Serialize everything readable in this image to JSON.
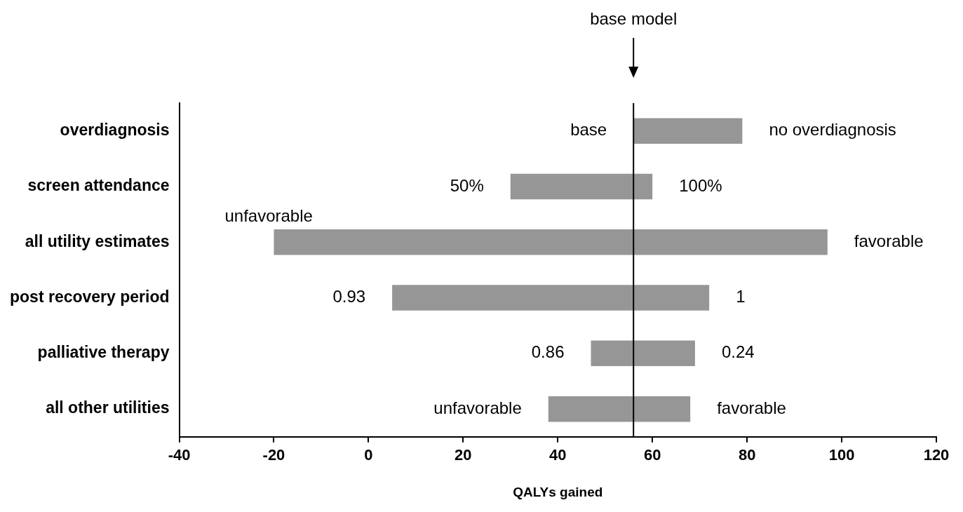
{
  "chart_data": {
    "type": "bar",
    "orientation": "horizontal",
    "xlabel": "QALYs gained",
    "categories": [
      "overdiagnosis",
      "screen attendance",
      "all utility estimates",
      "post recovery period",
      "palliative therapy",
      "all other utilities"
    ],
    "base": [
      56,
      30,
      -20,
      5,
      47,
      38
    ],
    "values": [
      23,
      30,
      117,
      67,
      22,
      30
    ],
    "color": "#969696",
    "xlim": [
      -40,
      120
    ],
    "xticks": [
      -40,
      -20,
      0,
      20,
      40,
      60,
      80,
      100,
      120
    ],
    "ref_lines": [
      {
        "axis": "x",
        "value": 56,
        "label": "base model",
        "color": "#000000"
      }
    ],
    "annotations": [
      {
        "text": "base",
        "x": 56,
        "y": "overdiagnosis"
      },
      {
        "text": "no overdiagnosis",
        "x": 79,
        "y": "overdiagnosis"
      },
      {
        "text": "50%",
        "x": 30,
        "y": "screen attendance"
      },
      {
        "text": "100%",
        "x": 60,
        "y": "screen attendance"
      },
      {
        "text": "unfavorable",
        "x": -20,
        "y": "all utility estimates"
      },
      {
        "text": "favorable",
        "x": 97,
        "y": "all utility estimates"
      },
      {
        "text": "0.93",
        "x": 5,
        "y": "post recovery period"
      },
      {
        "text": "1",
        "x": 72,
        "y": "post recovery period"
      },
      {
        "text": "0.86",
        "x": 47,
        "y": "palliative therapy"
      },
      {
        "text": "0.24",
        "x": 69,
        "y": "palliative therapy"
      },
      {
        "text": "unfavorable",
        "x": 38,
        "y": "all other utilities"
      },
      {
        "text": "favorable",
        "x": 68,
        "y": "all other utilities"
      }
    ]
  }
}
